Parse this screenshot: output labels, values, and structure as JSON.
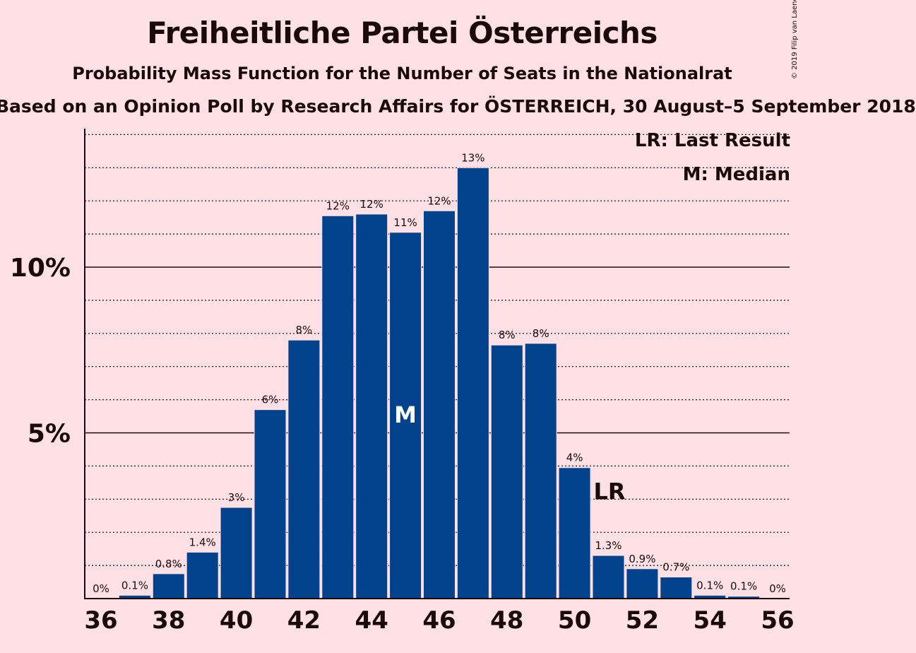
{
  "header": {
    "title": "Freiheitliche Partei Österreichs",
    "subtitle": "Probability Mass Function for the Number of Seats in the Nationalrat",
    "source": "Based on an Opinion Poll by Research Affairs for ÖSTERREICH, 30 August–5 September 2018",
    "copyright": "© 2019 Filip van Laenen"
  },
  "legend": {
    "last_result": "LR: Last Result",
    "median": "M: Median"
  },
  "colors": {
    "background": "#ffe0e4",
    "bar": "#00428c",
    "text": "#1a0a0a"
  },
  "chart_data": {
    "type": "bar",
    "x": [
      36,
      37,
      38,
      39,
      40,
      41,
      42,
      43,
      44,
      45,
      46,
      47,
      48,
      49,
      50,
      51,
      52,
      53,
      54,
      55,
      56
    ],
    "values": [
      0,
      0.1,
      0.75,
      1.4,
      2.75,
      5.7,
      7.8,
      11.55,
      11.6,
      11.05,
      11.7,
      13.0,
      7.65,
      7.7,
      3.95,
      1.3,
      0.9,
      0.65,
      0.1,
      0.07,
      0
    ],
    "labels": [
      "0%",
      "0.1%",
      "0.8%",
      "1.4%",
      "3%",
      "6%",
      "8%",
      "12%",
      "12%",
      "11%",
      "12%",
      "13%",
      "8%",
      "8%",
      "4%",
      "1.3%",
      "0.9%",
      "0.7%",
      "0.1%",
      "0.1%",
      "0%"
    ],
    "x_ticks": [
      "36",
      "38",
      "40",
      "42",
      "44",
      "46",
      "48",
      "50",
      "52",
      "54",
      "56"
    ],
    "y_ticks": [
      {
        "value": 5,
        "label": "5%"
      },
      {
        "value": 10,
        "label": "10%"
      }
    ],
    "ylim": [
      0,
      14
    ],
    "median": {
      "x": 45,
      "label": "M"
    },
    "last_result": {
      "x": 51,
      "label": "LR"
    },
    "grid": "dotted every 1%"
  }
}
